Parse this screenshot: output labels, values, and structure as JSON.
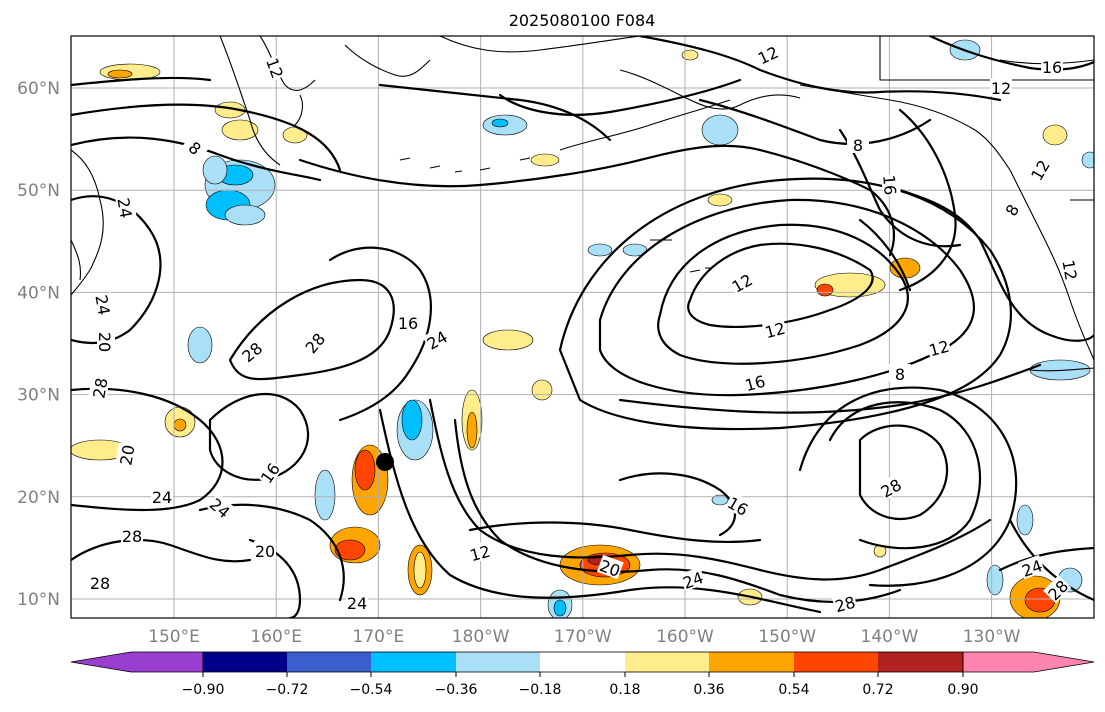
{
  "title": "2025080100 F084",
  "colors": {
    "levels": [
      {
        "color": "#9a3ed1"
      },
      {
        "color": "#00008b"
      },
      {
        "color": "#3a5fcd"
      },
      {
        "color": "#00bfff"
      },
      {
        "color": "#aadff8"
      },
      {
        "color": "#ffffff"
      },
      {
        "color": "#ffec8b"
      },
      {
        "color": "#ffa500"
      },
      {
        "color": "#ff4500"
      },
      {
        "color": "#b22222"
      },
      {
        "color": "#ff85b0"
      }
    ]
  },
  "map": {
    "lat_labels": [
      "60°N",
      "50°N",
      "40°N",
      "30°N",
      "20°N",
      "10°N"
    ],
    "lon_labels": [
      "150°E",
      "160°E",
      "170°E",
      "180°W",
      "170°W",
      "160°W",
      "150°W",
      "140°W",
      "130°W"
    ],
    "contour_labels": [
      "12",
      "16",
      "12",
      "8",
      "16",
      "12",
      "16",
      "12",
      "8",
      "12",
      "8",
      "12",
      "16",
      "8",
      "12",
      "28",
      "16",
      "24",
      "28",
      "24",
      "24",
      "20",
      "28",
      "20",
      "24",
      "24",
      "28",
      "20",
      "28",
      "24",
      "12",
      "20",
      "24",
      "16",
      "28",
      "28",
      "24",
      "28",
      "12"
    ],
    "marker": {
      "lon": 169.5,
      "lat": 23.2,
      "icon": "black-dot-icon"
    }
  },
  "colorbar": {
    "ticks": [
      "−0.90",
      "−0.72",
      "−0.54",
      "−0.36",
      "−0.18",
      "0.18",
      "0.36",
      "0.54",
      "0.72",
      "0.90"
    ]
  }
}
